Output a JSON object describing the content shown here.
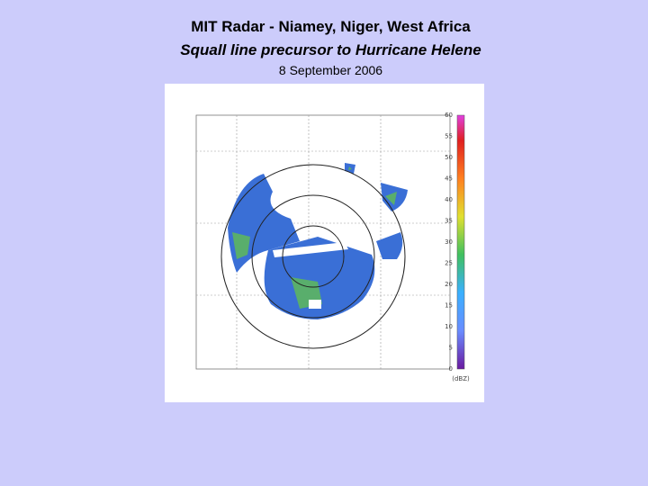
{
  "slide": {
    "title": "MIT Radar - Niamey, Niger, West Africa",
    "subtitle": "Squall line precursor to Hurricane Helene",
    "date": "8 September 2006",
    "radar_image": {
      "colorbar_labels": [
        "60",
        "55",
        "50",
        "45",
        "40",
        "35",
        "30",
        "25",
        "20",
        "15",
        "10",
        "5",
        "0"
      ],
      "colorbar_unit": "(dBZ)"
    }
  }
}
